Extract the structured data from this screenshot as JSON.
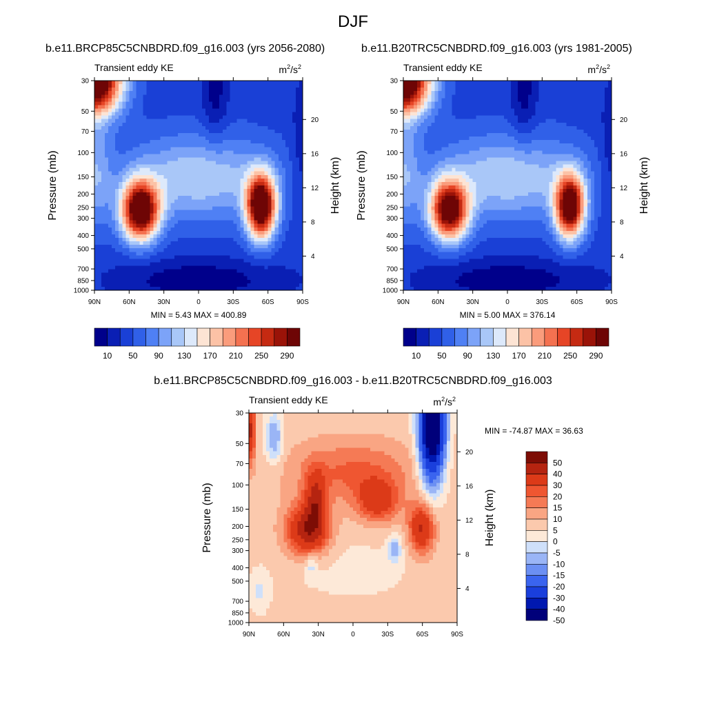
{
  "title": "DJF",
  "colors": {
    "cmap_main": [
      "#00008b",
      "#0a1fb4",
      "#1a40d6",
      "#3060e8",
      "#4f80f4",
      "#7ca3f8",
      "#a9c7f8",
      "#dde9fb",
      "#fde4d4",
      "#fcc2a6",
      "#fa9c7c",
      "#f47150",
      "#e64526",
      "#c52a12",
      "#9a1308",
      "#6e0505"
    ],
    "cmap_diff": [
      "#00007a",
      "#0018b0",
      "#1a3fdc",
      "#3a64ef",
      "#6b8ff3",
      "#9ab5f6",
      "#cfe0fa",
      "#fde9d8",
      "#fbc9ad",
      "#f9a583",
      "#f57a55",
      "#ef5631",
      "#dc3a18",
      "#b52410",
      "#7d0d05"
    ]
  },
  "chart_data": [
    {
      "type": "heatmap",
      "id": "future",
      "case_title": "b.e11.BRCP85C5CNBDRD.f09_g16.003 (yrs 2056-2080)",
      "left_label": "Transient eddy KE",
      "units_base": "m",
      "units_sup1": "2",
      "units_mid": "/s",
      "units_sup2": "2",
      "ylabel": "Pressure (mb)",
      "y2label": "Height (km)",
      "x_ticks": [
        "90N",
        "60N",
        "30N",
        "0",
        "30S",
        "60S",
        "90S"
      ],
      "y_ticks": [
        "30",
        "50",
        "70",
        "100",
        "150",
        "200",
        "250",
        "300",
        "400",
        "500",
        "700",
        "850",
        "1000"
      ],
      "y2_ticks": [
        "20",
        "16",
        "12",
        "8",
        "4"
      ],
      "min_label": "MIN = ",
      "min_value": "5.43",
      "max_label": "MAX = ",
      "max_value": "400.89",
      "min": 5.43,
      "max": 400.89,
      "colorbar_levels": [
        10,
        30,
        50,
        70,
        90,
        110,
        130,
        150,
        170,
        190,
        210,
        230,
        250,
        270,
        290
      ],
      "colorbar_labels": [
        "10",
        "50",
        "90",
        "130",
        "170",
        "210",
        "250",
        "290"
      ]
    },
    {
      "type": "heatmap",
      "id": "present",
      "case_title": "b.e11.B20TRC5CNBDRD.f09_g16.003 (yrs 1981-2005)",
      "left_label": "Transient eddy KE",
      "units_base": "m",
      "units_sup1": "2",
      "units_mid": "/s",
      "units_sup2": "2",
      "ylabel": "Pressure (mb)",
      "y2label": "Height (km)",
      "x_ticks": [
        "90N",
        "60N",
        "30N",
        "0",
        "30S",
        "60S",
        "90S"
      ],
      "y_ticks": [
        "30",
        "50",
        "70",
        "100",
        "150",
        "200",
        "250",
        "300",
        "400",
        "500",
        "700",
        "850",
        "1000"
      ],
      "y2_ticks": [
        "20",
        "16",
        "12",
        "8",
        "4"
      ],
      "min_label": "MIN = ",
      "min_value": "5.00",
      "max_label": "MAX = ",
      "max_value": "376.14",
      "min": 5.0,
      "max": 376.14,
      "colorbar_levels": [
        10,
        30,
        50,
        70,
        90,
        110,
        130,
        150,
        170,
        190,
        210,
        230,
        250,
        270,
        290
      ],
      "colorbar_labels": [
        "10",
        "50",
        "90",
        "130",
        "170",
        "210",
        "250",
        "290"
      ]
    },
    {
      "type": "heatmap",
      "id": "difference",
      "case_title": "b.e11.BRCP85C5CNBDRD.f09_g16.003 - b.e11.B20TRC5CNBDRD.f09_g16.003",
      "left_label": "Transient eddy KE",
      "units_base": "m",
      "units_sup1": "2",
      "units_mid": "/s",
      "units_sup2": "2",
      "ylabel": "Pressure (mb)",
      "y2label": "Height (km)",
      "x_ticks": [
        "90N",
        "60N",
        "30N",
        "0",
        "30S",
        "60S",
        "90S"
      ],
      "y_ticks": [
        "30",
        "50",
        "70",
        "100",
        "150",
        "200",
        "250",
        "300",
        "400",
        "500",
        "700",
        "850",
        "1000"
      ],
      "y2_ticks": [
        "20",
        "16",
        "12",
        "8",
        "4"
      ],
      "min_label": "MIN = ",
      "min_value": "-74.87",
      "max_label": "MAX = ",
      "max_value": "36.63",
      "min": -74.87,
      "max": 36.63,
      "colorbar_levels": [
        -50,
        -40,
        -30,
        -20,
        -15,
        -10,
        -5,
        0,
        5,
        10,
        15,
        20,
        30,
        40,
        50
      ],
      "colorbar_labels": [
        "50",
        "40",
        "30",
        "20",
        "15",
        "10",
        "5",
        "0",
        "-5",
        "-10",
        "-15",
        "-20",
        "-30",
        "-40",
        "-50"
      ]
    }
  ]
}
